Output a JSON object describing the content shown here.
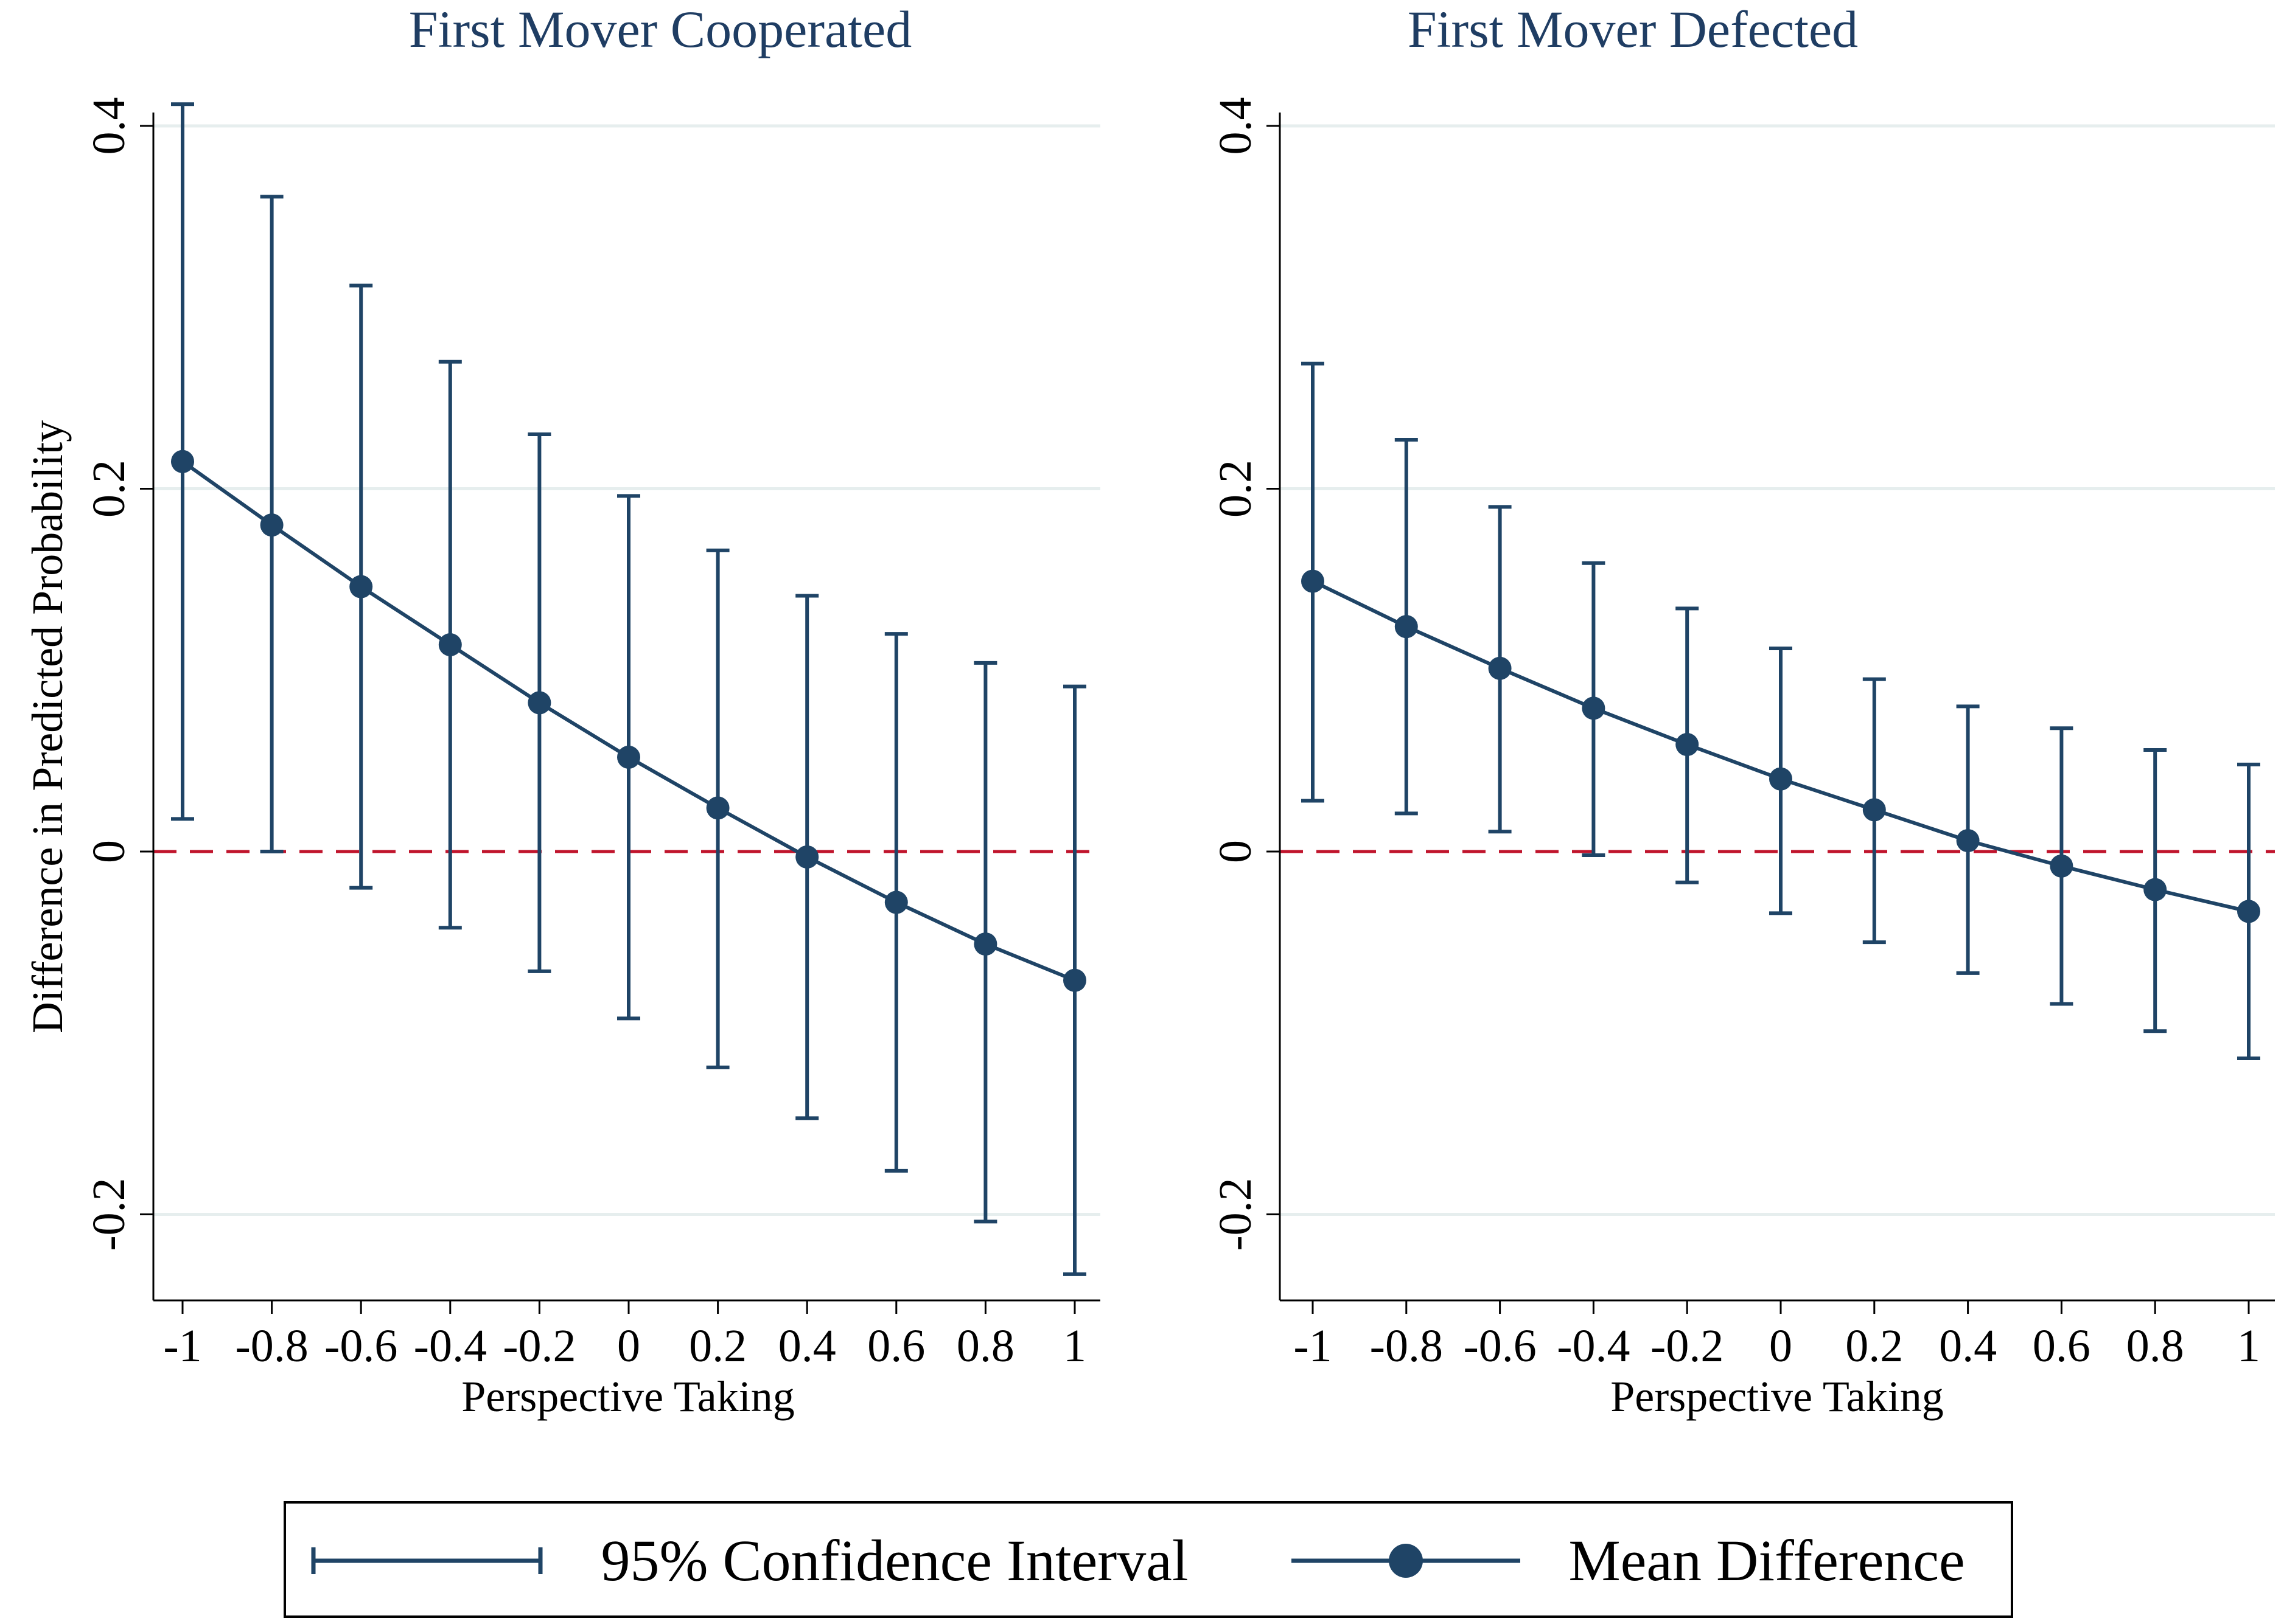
{
  "colors": {
    "series": "#1f4466",
    "reference": "#c0142c",
    "grid": "#e6eeee",
    "axis": "#000000",
    "title": "#1f3d63"
  },
  "chart_data": [
    {
      "type": "line",
      "title": "First Mover Cooperated",
      "xlabel": "Perspective Taking",
      "ylabel": "Difference in Predicted Probability",
      "xlim": [
        -1,
        1
      ],
      "ylim": [
        -0.25,
        0.42
      ],
      "xticks": [
        -1,
        -0.8,
        -0.6,
        -0.4,
        -0.2,
        0,
        0.2,
        0.4,
        0.6,
        0.8,
        1
      ],
      "xtick_labels": [
        "-1",
        "-0.8",
        "-0.6",
        "-0.4",
        "-0.2",
        "0",
        "0.2",
        "0.4",
        "0.6",
        "0.8",
        "1"
      ],
      "yticks": [
        -0.2,
        0,
        0.2,
        0.4
      ],
      "ytick_labels": [
        "-0.2",
        "0",
        "0.2",
        "0.4"
      ],
      "reference_line": 0,
      "series": [
        {
          "name": "Mean Difference",
          "x": [
            -1,
            -0.8,
            -0.6,
            -0.4,
            -0.2,
            0,
            0.2,
            0.4,
            0.6,
            0.8,
            1
          ],
          "y": [
            0.215,
            0.18,
            0.146,
            0.114,
            0.082,
            0.052,
            0.024,
            -0.003,
            -0.028,
            -0.051,
            -0.071
          ],
          "ci_lower": [
            0.018,
            0.0,
            -0.02,
            -0.042,
            -0.066,
            -0.092,
            -0.119,
            -0.147,
            -0.176,
            -0.204,
            -0.233
          ],
          "ci_upper": [
            0.412,
            0.361,
            0.312,
            0.27,
            0.23,
            0.196,
            0.166,
            0.141,
            0.12,
            0.104,
            0.091
          ]
        }
      ]
    },
    {
      "type": "line",
      "title": "First Mover Defected",
      "xlabel": "Perspective Taking",
      "ylabel": "",
      "xlim": [
        -1,
        1
      ],
      "ylim": [
        -0.25,
        0.42
      ],
      "xticks": [
        -1,
        -0.8,
        -0.6,
        -0.4,
        -0.2,
        0,
        0.2,
        0.4,
        0.6,
        0.8,
        1
      ],
      "xtick_labels": [
        "-1",
        "-0.8",
        "-0.6",
        "-0.4",
        "-0.2",
        "0",
        "0.2",
        "0.4",
        "0.6",
        "0.8",
        "1"
      ],
      "yticks": [
        -0.2,
        0,
        0.2,
        0.4
      ],
      "ytick_labels": [
        "-0.2",
        "0",
        "0.2",
        "0.4"
      ],
      "reference_line": 0,
      "series": [
        {
          "name": "Mean Difference",
          "x": [
            -1,
            -0.8,
            -0.6,
            -0.4,
            -0.2,
            0,
            0.2,
            0.4,
            0.6,
            0.8,
            1
          ],
          "y": [
            0.149,
            0.124,
            0.101,
            0.079,
            0.059,
            0.04,
            0.023,
            0.006,
            -0.008,
            -0.021,
            -0.033
          ],
          "ci_lower": [
            0.028,
            0.021,
            0.011,
            -0.002,
            -0.017,
            -0.034,
            -0.05,
            -0.067,
            -0.084,
            -0.099,
            -0.114
          ],
          "ci_upper": [
            0.269,
            0.227,
            0.19,
            0.159,
            0.134,
            0.112,
            0.095,
            0.08,
            0.068,
            0.056,
            0.048
          ]
        }
      ]
    }
  ],
  "legend": {
    "items": [
      {
        "key": "ci",
        "label": "95% Confidence Interval"
      },
      {
        "key": "mean",
        "label": "Mean Difference"
      }
    ]
  }
}
